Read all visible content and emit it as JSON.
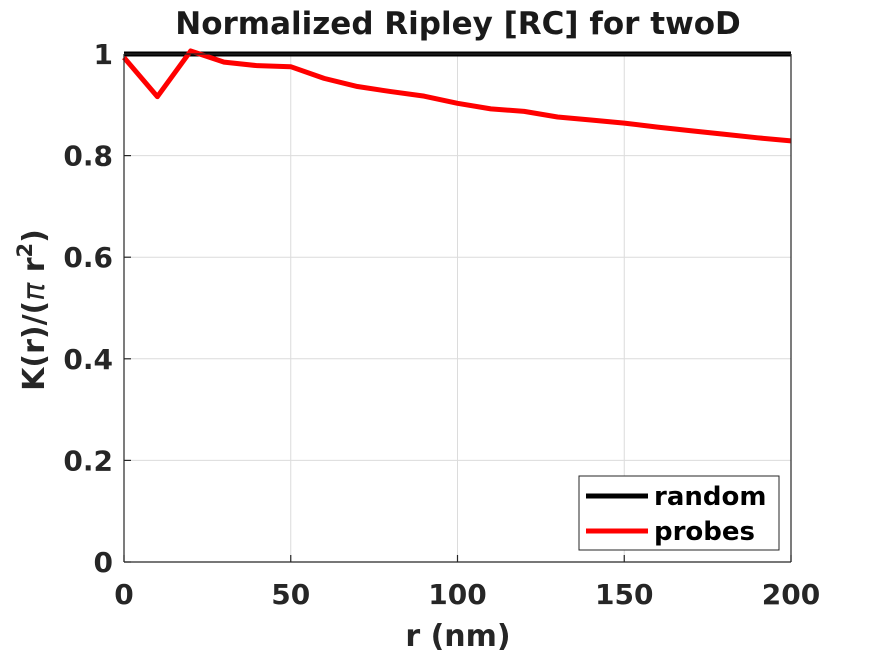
{
  "chart_data": {
    "type": "line",
    "title": "Normalized Ripley [RC] for twoD",
    "xlabel": "r (nm)",
    "ylabel": {
      "prefix": "K(r)/(",
      "greek": "π",
      "var": " r",
      "sup": "2",
      "suffix": ")"
    },
    "xlim": [
      0,
      200
    ],
    "ylim": [
      0,
      1
    ],
    "xticks": [
      0,
      50,
      100,
      150,
      200
    ],
    "xtick_labels": [
      "0",
      "50",
      "100",
      "150",
      "200"
    ],
    "yticks": [
      0,
      0.2,
      0.4,
      0.6,
      0.8,
      1
    ],
    "ytick_labels": [
      "0",
      "0.2",
      "0.4",
      "0.6",
      "0.8",
      "1"
    ],
    "grid": true,
    "legend_position": "bottom-right",
    "series": [
      {
        "name": "random",
        "color": "#000000",
        "x": [
          0,
          200
        ],
        "y": [
          1,
          1
        ]
      },
      {
        "name": "probes",
        "color": "#ff0000",
        "x": [
          0,
          10,
          20,
          30,
          40,
          50,
          60,
          70,
          80,
          90,
          100,
          110,
          120,
          130,
          140,
          150,
          160,
          170,
          180,
          190,
          200
        ],
        "y": [
          0.993,
          0.916,
          1.006,
          0.984,
          0.977,
          0.975,
          0.952,
          0.936,
          0.926,
          0.917,
          0.903,
          0.892,
          0.887,
          0.876,
          0.87,
          0.864,
          0.856,
          0.849,
          0.842,
          0.835,
          0.829
        ]
      }
    ]
  }
}
